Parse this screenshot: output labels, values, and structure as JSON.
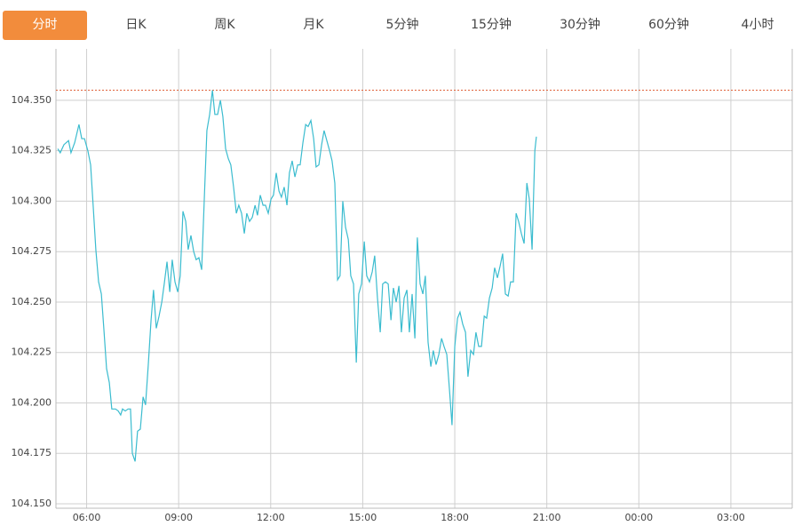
{
  "tabs": [
    "分时",
    "日K",
    "周K",
    "月K",
    "5分钟",
    "15分钟",
    "30分钟",
    "60分钟",
    "4小时"
  ],
  "active_tab": 0,
  "chart_data": {
    "type": "line",
    "color": "#3bbccf",
    "ref_line": 104.355,
    "ref_color": "#e0643c",
    "grid": true,
    "xlim": [
      5,
      29
    ],
    "xticks": [
      {
        "value": 6,
        "label": "06:00"
      },
      {
        "value": 9,
        "label": "09:00"
      },
      {
        "value": 12,
        "label": "12:00"
      },
      {
        "value": 15,
        "label": "15:00"
      },
      {
        "value": 18,
        "label": "18:00"
      },
      {
        "value": 21,
        "label": "21:00"
      },
      {
        "value": 24,
        "label": "00:00"
      },
      {
        "value": 27,
        "label": "03:00"
      }
    ],
    "ylim": [
      104.1478,
      104.3755
    ],
    "yticks": [
      {
        "value": 104.15,
        "label": "104.150"
      },
      {
        "value": 104.175,
        "label": "104.175"
      },
      {
        "value": 104.2,
        "label": "104.200"
      },
      {
        "value": 104.225,
        "label": "104.225"
      },
      {
        "value": 104.25,
        "label": "104.250"
      },
      {
        "value": 104.275,
        "label": "104.275"
      },
      {
        "value": 104.3,
        "label": "104.300"
      },
      {
        "value": 104.325,
        "label": "104.325"
      },
      {
        "value": 104.35,
        "label": "104.350"
      }
    ],
    "x": [
      5.06,
      5.14,
      5.26,
      5.41,
      5.49,
      5.61,
      5.75,
      5.84,
      5.93,
      6.04,
      6.13,
      6.22,
      6.3,
      6.39,
      6.48,
      6.56,
      6.65,
      6.74,
      6.82,
      6.94,
      7.03,
      7.11,
      7.17,
      7.26,
      7.35,
      7.43,
      7.49,
      7.58,
      7.66,
      7.75,
      7.84,
      7.92,
      8.01,
      8.1,
      8.18,
      8.27,
      8.36,
      8.45,
      8.53,
      8.62,
      8.71,
      8.79,
      8.88,
      8.97,
      9.05,
      9.14,
      9.23,
      9.31,
      9.4,
      9.49,
      9.57,
      9.66,
      9.75,
      9.84,
      9.92,
      10.01,
      10.1,
      10.18,
      10.27,
      10.36,
      10.44,
      10.53,
      10.62,
      10.7,
      10.79,
      10.88,
      10.96,
      11.05,
      11.14,
      11.22,
      11.31,
      11.4,
      11.49,
      11.57,
      11.66,
      11.75,
      11.83,
      11.92,
      12.01,
      12.09,
      12.18,
      12.27,
      12.35,
      12.44,
      12.53,
      12.61,
      12.7,
      12.79,
      12.88,
      12.96,
      13.05,
      13.14,
      13.22,
      13.31,
      13.4,
      13.48,
      13.57,
      13.66,
      13.74,
      13.83,
      13.92,
      14.0,
      14.09,
      14.18,
      14.26,
      14.35,
      14.44,
      14.53,
      14.61,
      14.7,
      14.79,
      14.87,
      14.96,
      15.05,
      15.13,
      15.22,
      15.31,
      15.39,
      15.48,
      15.57,
      15.65,
      15.74,
      15.83,
      15.92,
      16.0,
      16.09,
      16.18,
      16.26,
      16.35,
      16.44,
      16.52,
      16.61,
      16.7,
      16.78,
      16.87,
      16.96,
      17.04,
      17.13,
      17.22,
      17.3,
      17.39,
      17.48,
      17.57,
      17.65,
      17.74,
      17.83,
      17.91,
      18.0,
      18.09,
      18.17,
      18.26,
      18.35,
      18.43,
      18.52,
      18.61,
      18.69,
      18.78,
      18.87,
      18.96,
      19.04,
      19.13,
      19.22,
      19.3,
      19.39,
      19.48,
      19.56,
      19.65,
      19.74,
      19.82,
      19.91,
      20.0,
      20.08,
      20.17,
      20.26,
      20.35,
      20.43,
      20.52,
      20.61,
      20.66
    ],
    "values": [
      104.326,
      104.324,
      104.328,
      104.33,
      104.324,
      104.329,
      104.338,
      104.331,
      104.331,
      104.325,
      104.318,
      104.296,
      104.276,
      104.26,
      104.254,
      104.237,
      104.217,
      104.21,
      104.197,
      104.197,
      104.196,
      104.194,
      104.197,
      104.196,
      104.197,
      104.197,
      104.175,
      104.171,
      104.186,
      104.187,
      104.203,
      104.199,
      104.219,
      104.241,
      104.256,
      104.237,
      104.243,
      104.25,
      104.259,
      104.27,
      104.255,
      104.271,
      104.26,
      104.255,
      104.263,
      104.295,
      104.29,
      104.276,
      104.283,
      104.275,
      104.271,
      104.272,
      104.266,
      104.303,
      104.335,
      104.343,
      104.355,
      104.343,
      104.343,
      104.35,
      104.342,
      104.326,
      104.321,
      104.318,
      104.307,
      104.294,
      104.298,
      104.294,
      104.284,
      104.294,
      104.29,
      104.292,
      104.298,
      104.293,
      104.303,
      104.298,
      104.298,
      104.294,
      104.301,
      104.303,
      104.314,
      104.305,
      104.302,
      104.307,
      104.298,
      104.314,
      104.32,
      104.312,
      104.318,
      104.318,
      104.329,
      104.338,
      104.337,
      104.34,
      104.331,
      104.317,
      104.318,
      104.328,
      104.335,
      104.33,
      104.325,
      104.32,
      104.309,
      104.261,
      104.263,
      104.3,
      104.287,
      104.281,
      104.263,
      104.259,
      104.22,
      104.254,
      104.259,
      104.28,
      104.263,
      104.26,
      104.265,
      104.273,
      104.252,
      104.235,
      104.259,
      104.26,
      104.259,
      104.241,
      104.257,
      104.25,
      104.258,
      104.235,
      104.252,
      104.256,
      104.235,
      104.254,
      104.232,
      104.282,
      104.259,
      104.254,
      104.263,
      104.23,
      104.218,
      104.226,
      104.219,
      104.224,
      104.232,
      104.228,
      104.224,
      104.206,
      104.189,
      104.228,
      104.242,
      104.245,
      104.239,
      104.235,
      104.213,
      104.226,
      104.224,
      104.235,
      104.228,
      104.228,
      104.243,
      104.242,
      104.252,
      104.257,
      104.267,
      104.262,
      104.268,
      104.274,
      104.254,
      104.253,
      104.26,
      104.26,
      104.294,
      104.29,
      104.284,
      104.279,
      104.309,
      104.301,
      104.276,
      104.325,
      104.332
    ]
  }
}
